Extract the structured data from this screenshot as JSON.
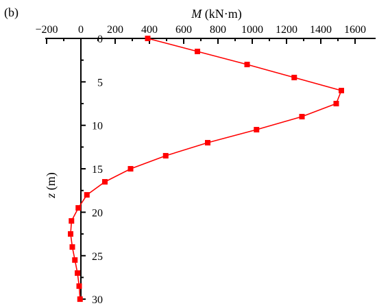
{
  "chart_data": {
    "type": "line",
    "panel_label": "(b)",
    "title": "",
    "x_axis": {
      "label_symbol": "M",
      "label_unit": " (kN·m)",
      "position": "top",
      "range": [
        -200,
        1700
      ],
      "ticks": [
        -200,
        0,
        200,
        400,
        600,
        800,
        1000,
        1200,
        1400,
        1600
      ],
      "tick_labels": [
        "−200",
        "0",
        "200",
        "400",
        "600",
        "800",
        "1000",
        "1200",
        "1400",
        "1600"
      ]
    },
    "y_axis": {
      "label_symbol": "z",
      "label_unit": " (m)",
      "position": "at x = 0",
      "inverted": true,
      "range": [
        0,
        30
      ],
      "ticks": [
        0,
        5,
        10,
        15,
        20,
        25,
        30
      ],
      "tick_labels": [
        "0",
        "5",
        "10",
        "15",
        "20",
        "25",
        "30"
      ]
    },
    "grid": false,
    "legend": null,
    "series": [
      {
        "color": "#ff0000",
        "marker": "square",
        "points": [
          {
            "x": 390,
            "y": 0
          },
          {
            "x": 680,
            "y": 1.5
          },
          {
            "x": 970,
            "y": 3
          },
          {
            "x": 1245,
            "y": 4.5
          },
          {
            "x": 1520,
            "y": 6
          },
          {
            "x": 1490,
            "y": 7.5
          },
          {
            "x": 1290,
            "y": 9
          },
          {
            "x": 1025,
            "y": 10.5
          },
          {
            "x": 740,
            "y": 12
          },
          {
            "x": 495,
            "y": 13.5
          },
          {
            "x": 290,
            "y": 15
          },
          {
            "x": 140,
            "y": 16.5
          },
          {
            "x": 35,
            "y": 18
          },
          {
            "x": -15,
            "y": 19.5
          },
          {
            "x": -55,
            "y": 21
          },
          {
            "x": -60,
            "y": 22.5
          },
          {
            "x": -50,
            "y": 24
          },
          {
            "x": -35,
            "y": 25.5
          },
          {
            "x": -20,
            "y": 27
          },
          {
            "x": -10,
            "y": 28.5
          },
          {
            "x": -5,
            "y": 30
          }
        ]
      }
    ]
  }
}
